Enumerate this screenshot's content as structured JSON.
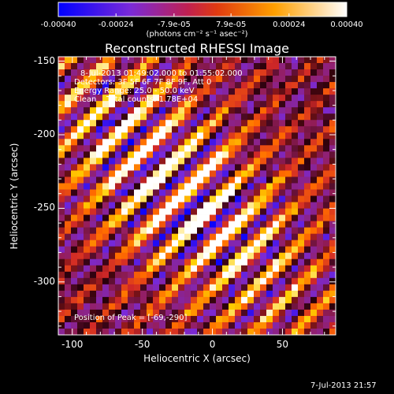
{
  "colorbar": {
    "ticks": [
      "-0.00040",
      "-0.00024",
      "-7.9e-05",
      "7.9e-05",
      "0.00024",
      "0.00040"
    ],
    "tick_values": [
      -0.0004,
      -0.00024,
      -7.9e-05,
      7.9e-05,
      0.00024,
      0.0004
    ],
    "unit_label": "(photons cm⁻² s⁻¹ asec⁻²)",
    "range": [
      -0.0004,
      0.0004
    ],
    "colors": [
      "#0000ff",
      "#7a2ad8",
      "#d02828",
      "#ff6a00",
      "#ffd000",
      "#ffffff"
    ]
  },
  "chart_data": {
    "type": "heatmap",
    "title": "Reconstructed RHESSI Image",
    "xlabel": "Heliocentric X (arcsec)",
    "ylabel": "Heliocentric Y (arcsec)",
    "xlim": [
      -110,
      88
    ],
    "ylim": [
      -336,
      -147
    ],
    "xticks": [
      -100,
      -50,
      0,
      50
    ],
    "yticks": [
      -150,
      -200,
      -250,
      -300
    ],
    "xtick_labels": [
      "-100",
      "-50",
      "0",
      "50"
    ],
    "ytick_labels": [
      "-150",
      "-200",
      "-250",
      "-300"
    ],
    "annotations": [
      "8-Jul-2013 01:49:02.000 to 01:55:02.000",
      "Detectors: 3F 5F 6F 7F 8F 9F, Att 0",
      "Energy Range: 25.0 - 50.0 keV",
      "Clean    Total counts: 1.78E+04"
    ],
    "peak_label": "Position of Peak = [-69,-290]",
    "peak": [
      -69,
      -290
    ]
  },
  "footer_timestamp": "7-Jul-2013 21:57"
}
